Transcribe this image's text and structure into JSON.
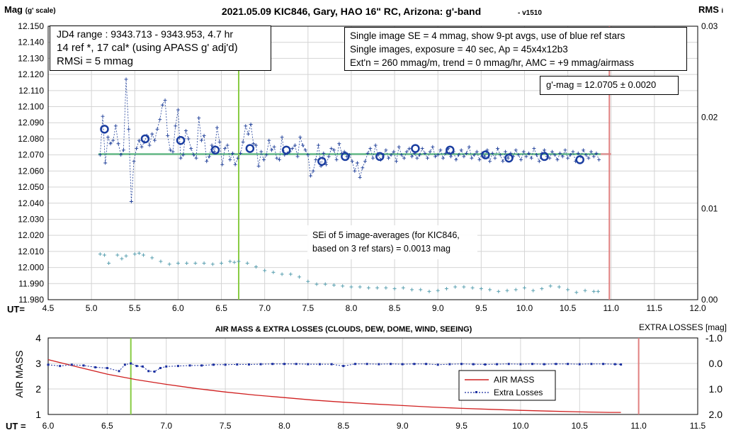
{
  "colors": {
    "mag": "#1f3f99",
    "circle": "#1a3da0",
    "lowerSeries": "#5aa0b0",
    "fit": "#66bb88",
    "refline": "#88cc44",
    "endline": "#e08080",
    "airmass": "#d02020",
    "losses": "#1a2fa0"
  },
  "top": {
    "title": "2021.05.09 KIC846, Gary, HAO 16\" RC, Arizona: g'-band",
    "version": "- v1510",
    "y_label": "Mag",
    "y_label_sub": "(g' scale)",
    "rms_label": "RMS",
    "rms_sub": "i",
    "ut_label": "UT=",
    "info_left": [
      "JD4 range : 9343.713 - 9343.953,  4.7  hr",
      "14 ref *, 17 cal* (using APASS g' adj'd)",
      "RMSi = 5 mmag"
    ],
    "info_right": [
      "Single image SE = 4 mmag, show  9-pt avgs, use of blue ref stars",
      "Single images, exposure = 40 sec, Ap = 45x4x12b3",
      "Ext'n = 260 mmag/m, trend =  0 mmag/hr, AMC = +9 mmag/airmass"
    ],
    "result": "g'-mag = 12.0705 ± 0.0020",
    "sei_note": [
      "SEi of 5 image-averages (for KIC846,",
      "based on 3 ref stars) = 0.0013 mag"
    ]
  },
  "bottom": {
    "title": "AIR MASS & EXTRA LOSSES (CLOUDS, DEW, DOME, WIND, SEEING)",
    "right_title": "EXTRA LOSSES [mag]",
    "y_label": "AIR MASS",
    "ut_label": "UT =",
    "legend": [
      "AIR MASS",
      "Extra Losses"
    ]
  },
  "chart_data": [
    {
      "type": "scatter",
      "title": "2021.05.09 KIC846, Gary, HAO 16\" RC, Arizona: g'-band",
      "xlabel": "UT=",
      "ylabel": "Mag (g' scale)",
      "y2label": "RMS i",
      "xlim": [
        4.5,
        12.0
      ],
      "ylim": [
        12.15,
        11.98
      ],
      "y2lim": [
        0.0,
        0.03
      ],
      "xticks": [
        "4.5",
        "5.0",
        "5.5",
        "6.0",
        "6.5",
        "7.0",
        "7.5",
        "8.0",
        "8.5",
        "9.0",
        "9.5",
        "10.0",
        "10.5",
        "11.0",
        "11.5",
        "12.0"
      ],
      "yticks": [
        "11.980",
        "11.990",
        "12.000",
        "12.010",
        "12.020",
        "12.030",
        "12.040",
        "12.050",
        "12.060",
        "12.070",
        "12.080",
        "12.090",
        "12.100",
        "12.110",
        "12.120",
        "12.130",
        "12.140",
        "12.150"
      ],
      "y2ticks": [
        "0.00",
        "0.01",
        "0.02",
        "0.03"
      ],
      "grid": true,
      "fit_level": 12.0705,
      "vline_ut": 6.7,
      "end_ut": 10.98,
      "series": [
        {
          "name": "single images",
          "x": [
            5.1,
            5.13,
            5.16,
            5.19,
            5.22,
            5.25,
            5.28,
            5.31,
            5.34,
            5.37,
            5.4,
            5.43,
            5.46,
            5.49,
            5.52,
            5.55,
            5.58,
            5.61,
            5.64,
            5.67,
            5.7,
            5.73,
            5.76,
            5.79,
            5.82,
            5.85,
            5.88,
            5.91,
            5.94,
            5.97,
            6.0,
            6.03,
            6.06,
            6.09,
            6.12,
            6.15,
            6.18,
            6.21,
            6.24,
            6.27,
            6.3,
            6.33,
            6.36,
            6.39,
            6.42,
            6.45,
            6.48,
            6.51,
            6.54,
            6.57,
            6.6,
            6.63,
            6.66,
            6.69,
            6.72,
            6.75,
            6.78,
            6.81,
            6.84,
            6.87,
            6.9,
            6.93,
            6.96,
            6.99,
            7.02,
            7.05,
            7.08,
            7.11,
            7.14,
            7.17,
            7.2,
            7.23,
            7.26,
            7.29,
            7.32,
            7.35,
            7.38,
            7.41,
            7.44,
            7.47,
            7.5,
            7.53,
            7.56,
            7.59,
            7.62,
            7.65,
            7.68,
            7.71,
            7.74,
            7.77,
            7.8,
            7.83,
            7.86,
            7.89,
            7.92,
            7.95,
            7.98,
            8.01,
            8.04,
            8.07,
            8.1,
            8.13,
            8.16,
            8.19,
            8.22,
            8.25,
            8.28,
            8.31,
            8.34,
            8.37,
            8.4,
            8.43,
            8.46,
            8.49,
            8.52,
            8.55,
            8.58,
            8.61,
            8.64,
            8.67,
            8.7,
            8.73,
            8.76,
            8.79,
            8.82,
            8.85,
            8.88,
            8.91,
            8.94,
            8.97,
            9.0,
            9.03,
            9.06,
            9.09,
            9.12,
            9.15,
            9.18,
            9.21,
            9.24,
            9.27,
            9.3,
            9.33,
            9.36,
            9.39,
            9.42,
            9.45,
            9.48,
            9.51,
            9.54,
            9.57,
            9.6,
            9.63,
            9.66,
            9.69,
            9.72,
            9.75,
            9.78,
            9.81,
            9.84,
            9.87,
            9.9,
            9.93,
            9.96,
            9.99,
            10.02,
            10.05,
            10.08,
            10.11,
            10.14,
            10.17,
            10.2,
            10.23,
            10.26,
            10.29,
            10.32,
            10.35,
            10.38,
            10.41,
            10.44,
            10.47,
            10.5,
            10.53,
            10.56,
            10.59,
            10.62,
            10.65,
            10.68,
            10.71,
            10.74,
            10.77,
            10.8,
            10.83,
            10.86
          ],
          "y": [
            12.07,
            12.094,
            12.065,
            12.081,
            12.077,
            12.079,
            12.088,
            12.077,
            12.07,
            12.073,
            12.117,
            12.086,
            12.041,
            12.066,
            12.074,
            12.079,
            12.075,
            12.078,
            12.082,
            12.076,
            12.083,
            12.079,
            12.086,
            12.092,
            12.101,
            12.104,
            12.082,
            12.073,
            12.072,
            12.088,
            12.098,
            12.068,
            12.07,
            12.085,
            12.08,
            12.074,
            12.07,
            12.068,
            12.093,
            12.079,
            12.082,
            12.066,
            12.069,
            12.076,
            12.072,
            12.087,
            12.078,
            12.064,
            12.074,
            12.076,
            12.067,
            12.071,
            12.064,
            12.068,
            12.071,
            12.078,
            12.088,
            12.083,
            12.089,
            12.077,
            12.076,
            12.063,
            12.072,
            12.067,
            12.07,
            12.079,
            12.073,
            12.075,
            12.068,
            12.067,
            12.081,
            12.07,
            12.071,
            12.072,
            12.074,
            12.076,
            12.069,
            12.081,
            12.076,
            12.073,
            12.07,
            12.057,
            12.06,
            12.067,
            12.076,
            12.063,
            12.071,
            12.064,
            12.069,
            12.074,
            12.073,
            12.067,
            12.077,
            12.071,
            12.072,
            12.069,
            12.07,
            12.066,
            12.06,
            12.065,
            12.056,
            12.062,
            12.066,
            12.071,
            12.074,
            12.068,
            12.076,
            12.07,
            12.067,
            12.07,
            12.073,
            12.068,
            12.07,
            12.072,
            12.066,
            12.075,
            12.07,
            12.068,
            12.072,
            12.074,
            12.069,
            12.071,
            12.068,
            12.07,
            12.074,
            12.071,
            12.068,
            12.072,
            12.075,
            12.069,
            12.07,
            12.073,
            12.068,
            12.071,
            12.074,
            12.069,
            12.072,
            12.067,
            12.07,
            12.073,
            12.069,
            12.071,
            12.075,
            12.068,
            12.07,
            12.072,
            12.067,
            12.071,
            12.069,
            12.073,
            12.066,
            12.071,
            12.068,
            12.074,
            12.07,
            12.066,
            12.072,
            12.068,
            12.071,
            12.069,
            12.073,
            12.07,
            12.067,
            12.072,
            12.069,
            12.071,
            12.068,
            12.074,
            12.07,
            12.066,
            12.071,
            12.073,
            12.069,
            12.068,
            12.072,
            12.07,
            12.067,
            12.071,
            12.069,
            12.073,
            12.068,
            12.07,
            12.072,
            12.066,
            12.071,
            12.069,
            12.073,
            12.07,
            12.068,
            12.072,
            12.069,
            12.071,
            12.067
          ]
        },
        {
          "name": "9-pt avgs",
          "x": [
            5.15,
            5.62,
            6.03,
            6.43,
            6.83,
            7.25,
            7.66,
            7.93,
            8.33,
            8.74,
            9.14,
            9.55,
            9.82,
            10.23,
            10.64
          ],
          "y": [
            12.086,
            12.08,
            12.079,
            12.073,
            12.074,
            12.073,
            12.066,
            12.069,
            12.069,
            12.074,
            12.073,
            12.07,
            12.068,
            12.069,
            12.067
          ]
        },
        {
          "name": "RMSi (right axis)",
          "x": [
            5.1,
            5.15,
            5.2,
            5.3,
            5.35,
            5.4,
            5.5,
            5.55,
            5.6,
            5.7,
            5.8,
            5.9,
            6.0,
            6.1,
            6.2,
            6.3,
            6.4,
            6.5,
            6.6,
            6.65,
            6.7,
            6.8,
            6.9,
            7.0,
            7.1,
            7.2,
            7.3,
            7.4,
            7.5,
            7.6,
            7.7,
            7.8,
            7.9,
            8.0,
            8.1,
            8.2,
            8.3,
            8.4,
            8.5,
            8.6,
            8.7,
            8.8,
            8.9,
            9.0,
            9.1,
            9.2,
            9.3,
            9.4,
            9.5,
            9.6,
            9.7,
            9.8,
            9.9,
            10.0,
            10.1,
            10.2,
            10.3,
            10.4,
            10.5,
            10.6,
            10.7,
            10.8,
            10.85
          ],
          "y": [
            0.005,
            0.0049,
            0.004,
            0.0049,
            0.0045,
            0.0048,
            0.005,
            0.0051,
            0.0049,
            0.0046,
            0.0042,
            0.0039,
            0.004,
            0.004,
            0.004,
            0.004,
            0.0039,
            0.004,
            0.0042,
            0.0041,
            0.0042,
            0.004,
            0.0036,
            0.0032,
            0.003,
            0.0028,
            0.0028,
            0.0025,
            0.002,
            0.0017,
            0.0017,
            0.0016,
            0.0015,
            0.0014,
            0.0014,
            0.0013,
            0.0013,
            0.0013,
            0.0012,
            0.0013,
            0.0011,
            0.0011,
            0.0009,
            0.001,
            0.0012,
            0.0014,
            0.0014,
            0.0013,
            0.0012,
            0.0011,
            0.0009,
            0.001,
            0.0011,
            0.0013,
            0.001,
            0.0012,
            0.0015,
            0.0014,
            0.0011,
            0.0008,
            0.001,
            0.0009,
            0.0009
          ]
        }
      ]
    },
    {
      "type": "line",
      "title": "AIR MASS & EXTRA LOSSES (CLOUDS, DEW, DOME, WIND, SEEING)",
      "xlabel": "UT =",
      "ylabel": "AIR MASS",
      "y2label": "EXTRA LOSSES [mag]",
      "xlim": [
        6.0,
        11.5
      ],
      "ylim": [
        1,
        4
      ],
      "y2lim": [
        2.0,
        -1.0
      ],
      "xticks": [
        "6.0",
        "6.5",
        "7.0",
        "7.5",
        "8.0",
        "8.5",
        "9.0",
        "9.5",
        "10.0",
        "10.5",
        "11.0",
        "11.5"
      ],
      "yticks": [
        "1",
        "2",
        "3",
        "4"
      ],
      "y2ticks": [
        "-1.0",
        "0.0",
        "1.0",
        "2.0"
      ],
      "grid": true,
      "legend_position": "right",
      "vline_ut": 6.7,
      "end_ut": 11.0,
      "series": [
        {
          "name": "AIR MASS",
          "x": [
            6.0,
            6.25,
            6.5,
            6.75,
            7.0,
            7.25,
            7.5,
            7.75,
            8.0,
            8.25,
            8.5,
            8.75,
            9.0,
            9.25,
            9.5,
            9.75,
            10.0,
            10.25,
            10.5,
            10.75,
            10.85
          ],
          "y": [
            3.15,
            2.86,
            2.58,
            2.36,
            2.18,
            2.02,
            1.88,
            1.76,
            1.66,
            1.56,
            1.48,
            1.41,
            1.35,
            1.29,
            1.24,
            1.2,
            1.16,
            1.13,
            1.1,
            1.08,
            1.08
          ]
        },
        {
          "name": "Extra Losses",
          "x": [
            6.0,
            6.1,
            6.2,
            6.3,
            6.4,
            6.5,
            6.6,
            6.65,
            6.7,
            6.75,
            6.8,
            6.85,
            6.9,
            6.95,
            7.0,
            7.1,
            7.2,
            7.3,
            7.4,
            7.5,
            7.6,
            7.7,
            7.8,
            7.9,
            8.0,
            8.1,
            8.2,
            8.3,
            8.4,
            8.5,
            8.6,
            8.7,
            8.8,
            8.9,
            9.0,
            9.1,
            9.2,
            9.3,
            9.4,
            9.5,
            9.6,
            9.7,
            9.8,
            9.9,
            10.0,
            10.1,
            10.2,
            10.3,
            10.4,
            10.5,
            10.6,
            10.7,
            10.8,
            10.85
          ],
          "y": [
            0.05,
            0.1,
            0.05,
            0.08,
            0.15,
            0.18,
            0.3,
            0.05,
            0.0,
            0.1,
            0.12,
            0.3,
            0.32,
            0.18,
            0.12,
            0.1,
            0.08,
            0.08,
            0.05,
            0.05,
            0.04,
            0.04,
            0.03,
            0.02,
            0.02,
            0.02,
            0.03,
            0.03,
            0.03,
            0.1,
            0.02,
            0.02,
            0.03,
            0.02,
            0.03,
            0.02,
            0.02,
            0.05,
            0.03,
            0.02,
            0.03,
            0.04,
            0.03,
            0.02,
            0.03,
            0.02,
            0.03,
            0.02,
            0.02,
            0.03,
            0.02,
            0.02,
            0.03,
            0.04
          ]
        }
      ]
    }
  ]
}
